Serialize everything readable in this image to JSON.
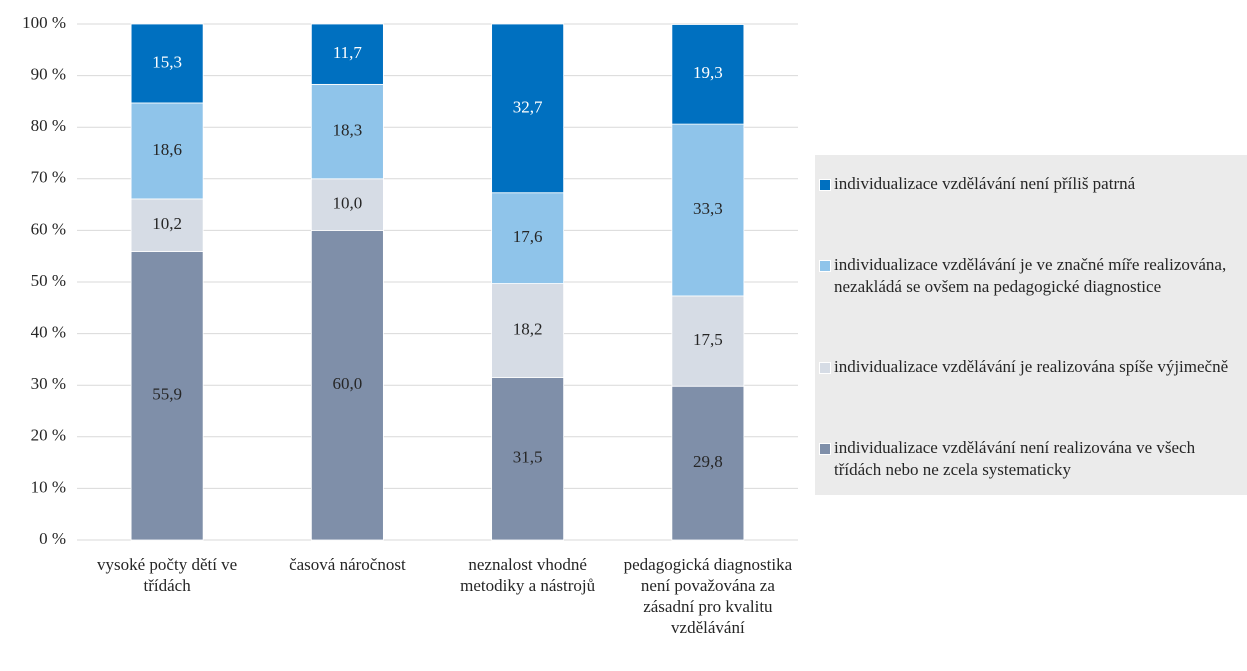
{
  "chart_data": {
    "type": "stacked_bar",
    "categories": [
      "vysoké počty dětí ve třídách",
      "časová náročnost",
      "neznalost vhodné metodiky a nástrojů",
      "pedagogická diagnostika není považována za zásadní pro kvalitu vzdělávání"
    ],
    "series": [
      {
        "name": "individualizace vzdělávání není realizována ve všech třídách nebo ne zcela systematicky",
        "color": "#7f8fa9",
        "values": [
          55.9,
          60.0,
          31.5,
          29.8
        ],
        "value_labels": [
          "55,9",
          "60,0",
          "31,5",
          "29,8"
        ]
      },
      {
        "name": "individualizace vzdělávání je realizována spíše výjimečně",
        "color": "#d6dce5",
        "values": [
          10.2,
          10.0,
          18.2,
          17.5
        ],
        "value_labels": [
          "10,2",
          "10,0",
          "18,2",
          "17,5"
        ]
      },
      {
        "name": "individualizace vzdělávání je ve značné míře realizována, nezakládá se ovšem na pedagogické diagnostice",
        "color": "#8fc4ea",
        "values": [
          18.6,
          18.3,
          17.6,
          33.3
        ],
        "value_labels": [
          "18,6",
          "18,3",
          "17,6",
          "33,3"
        ]
      },
      {
        "name": "individualizace vzdělávání není příliš patrná",
        "color": "#0070c0",
        "values": [
          15.3,
          11.7,
          32.7,
          19.3
        ],
        "value_labels": [
          "15,3",
          "11,7",
          "32,7",
          "19,3"
        ]
      }
    ],
    "ylim": [
      0,
      100
    ],
    "yticks": [
      {
        "value": 0,
        "label": "0 %"
      },
      {
        "value": 10,
        "label": "10 %"
      },
      {
        "value": 20,
        "label": "20 %"
      },
      {
        "value": 30,
        "label": "30 %"
      },
      {
        "value": 40,
        "label": "40 %"
      },
      {
        "value": 50,
        "label": "50 %"
      },
      {
        "value": 60,
        "label": "60 %"
      },
      {
        "value": 70,
        "label": "70 %"
      },
      {
        "value": 80,
        "label": "80 %"
      },
      {
        "value": 90,
        "label": "90 %"
      },
      {
        "value": 100,
        "label": "100 %"
      }
    ],
    "grid": true,
    "legend": "right"
  }
}
